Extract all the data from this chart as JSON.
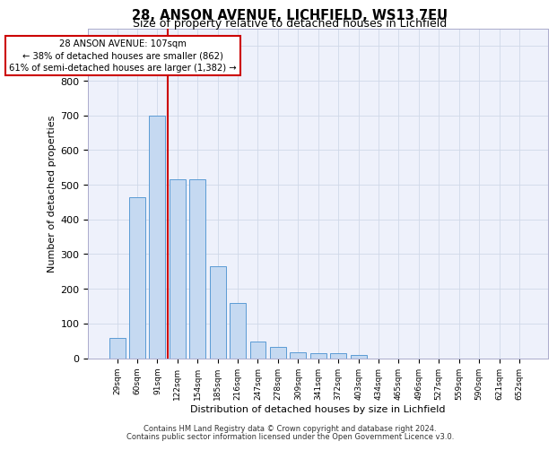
{
  "title_line1": "28, ANSON AVENUE, LICHFIELD, WS13 7EU",
  "title_line2": "Size of property relative to detached houses in Lichfield",
  "xlabel": "Distribution of detached houses by size in Lichfield",
  "ylabel": "Number of detached properties",
  "categories": [
    "29sqm",
    "60sqm",
    "91sqm",
    "122sqm",
    "154sqm",
    "185sqm",
    "216sqm",
    "247sqm",
    "278sqm",
    "309sqm",
    "341sqm",
    "372sqm",
    "403sqm",
    "434sqm",
    "465sqm",
    "496sqm",
    "527sqm",
    "559sqm",
    "590sqm",
    "621sqm",
    "652sqm"
  ],
  "values": [
    57,
    465,
    700,
    515,
    515,
    265,
    160,
    47,
    32,
    18,
    15,
    15,
    8,
    0,
    0,
    0,
    0,
    0,
    0,
    0,
    0
  ],
  "bar_color": "#c5d9f1",
  "bar_edge_color": "#5b9bd5",
  "grid_color": "#d0d8e8",
  "vline_color": "#cc0000",
  "annotation_text": "28 ANSON AVENUE: 107sqm\n← 38% of detached houses are smaller (862)\n61% of semi-detached houses are larger (1,382) →",
  "annotation_box_color": "#ffffff",
  "annotation_box_edge_color": "#cc0000",
  "ylim": [
    0,
    950
  ],
  "yticks": [
    0,
    100,
    200,
    300,
    400,
    500,
    600,
    700,
    800,
    900
  ],
  "footer_line1": "Contains HM Land Registry data © Crown copyright and database right 2024.",
  "footer_line2": "Contains public sector information licensed under the Open Government Licence v3.0.",
  "bg_color": "#eef1fb"
}
